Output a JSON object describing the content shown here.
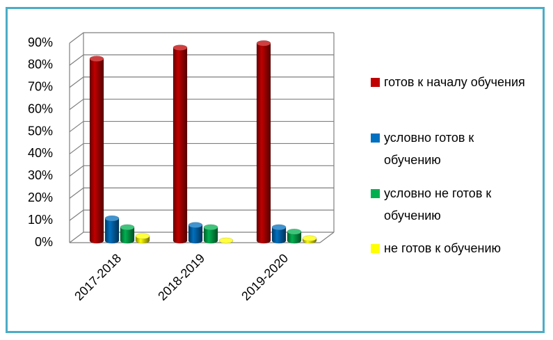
{
  "chart_data": {
    "type": "bar3d",
    "categories": [
      "2017-2018",
      "2018-2019",
      "2019-2020"
    ],
    "series": [
      {
        "name": "готов к началу обучения",
        "color": "#c00000",
        "values": [
          82,
          87,
          89
        ]
      },
      {
        "name": "условно готов к обучению",
        "color": "#0070c0",
        "values": [
          10,
          7,
          6
        ]
      },
      {
        "name": "условно не готов к обучению",
        "color": "#00b050",
        "values": [
          6,
          6,
          4
        ]
      },
      {
        "name": "не готов к обучению",
        "color": "#ffff00",
        "values": [
          2,
          0,
          1
        ]
      }
    ],
    "ylim": [
      0,
      90
    ],
    "yticks": [
      {
        "value": 0,
        "label": "0%"
      },
      {
        "value": 10,
        "label": "10%"
      },
      {
        "value": 20,
        "label": "20%"
      },
      {
        "value": 30,
        "label": "30%"
      },
      {
        "value": 40,
        "label": "40%"
      },
      {
        "value": 50,
        "label": "50%"
      },
      {
        "value": 60,
        "label": "60%"
      },
      {
        "value": 70,
        "label": "70%"
      },
      {
        "value": 80,
        "label": "80%"
      },
      {
        "value": 90,
        "label": "90%"
      }
    ],
    "grid": true,
    "legend": "right"
  }
}
